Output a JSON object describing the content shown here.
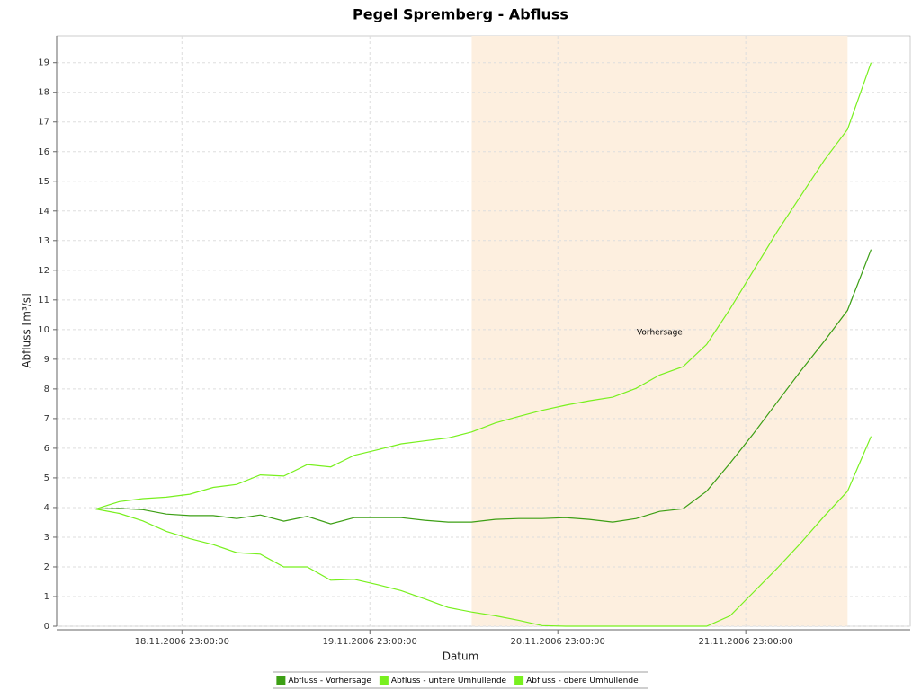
{
  "chart_data": {
    "type": "line",
    "title": "Pegel Spremberg - Abfluss",
    "x_label": "Datum",
    "y_label": "Abfluss [m³/s]",
    "x": [
      "18.11.2006 12:00:00",
      "18.11.2006 15:00:00",
      "18.11.2006 18:00:00",
      "18.11.2006 21:00:00",
      "19.11.2006 00:00:00",
      "19.11.2006 03:00:00",
      "19.11.2006 06:00:00",
      "19.11.2006 09:00:00",
      "19.11.2006 12:00:00",
      "19.11.2006 15:00:00",
      "19.11.2006 18:00:00",
      "19.11.2006 21:00:00",
      "20.11.2006 00:00:00",
      "20.11.2006 03:00:00",
      "20.11.2006 06:00:00",
      "20.11.2006 09:00:00",
      "20.11.2006 12:00:00",
      "20.11.2006 15:00:00",
      "20.11.2006 18:00:00",
      "20.11.2006 21:00:00",
      "21.11.2006 00:00:00",
      "21.11.2006 03:00:00",
      "21.11.2006 06:00:00",
      "21.11.2006 09:00:00",
      "21.11.2006 12:00:00",
      "21.11.2006 15:00:00",
      "21.11.2006 18:00:00",
      "21.11.2006 21:00:00",
      "22.11.2006 00:00:00",
      "22.11.2006 03:00:00",
      "22.11.2006 06:00:00",
      "22.11.2006 09:00:00",
      "22.11.2006 12:00:00",
      "22.11.2006 15:00:00"
    ],
    "series": [
      {
        "name": "Abfluss - Vorhersage",
        "color": "#3c9f14",
        "values": [
          3.95,
          3.97,
          3.93,
          3.78,
          3.73,
          3.73,
          3.63,
          3.75,
          3.54,
          3.7,
          3.45,
          3.66,
          3.66,
          3.66,
          3.57,
          3.51,
          3.51,
          3.6,
          3.63,
          3.63,
          3.66,
          3.6,
          3.51,
          3.63,
          3.87,
          3.96,
          4.55,
          5.5,
          6.5,
          7.55,
          8.6,
          9.6,
          10.65,
          12.7
        ]
      },
      {
        "name": "Abfluss - untere Umhüllende",
        "color": "#78f01e",
        "values": [
          3.95,
          3.8,
          3.55,
          3.2,
          2.95,
          2.75,
          2.48,
          2.43,
          2.0,
          2.0,
          1.55,
          1.58,
          1.4,
          1.2,
          0.92,
          0.63,
          0.48,
          0.35,
          0.2,
          0.02,
          0,
          0,
          0,
          0,
          0,
          0,
          0,
          0.35,
          1.15,
          1.95,
          2.8,
          3.7,
          4.55,
          6.4
        ]
      },
      {
        "name": "Abfluss - obere Umhüllende",
        "color": "#78f01e",
        "values": [
          3.95,
          4.2,
          4.3,
          4.35,
          4.45,
          4.68,
          4.78,
          5.1,
          5.06,
          5.45,
          5.37,
          5.76,
          5.95,
          6.15,
          6.25,
          6.35,
          6.55,
          6.85,
          7.07,
          7.28,
          7.45,
          7.6,
          7.72,
          8.02,
          8.47,
          8.75,
          9.5,
          10.7,
          12.0,
          13.3,
          14.5,
          15.7,
          16.75,
          19.0
        ]
      }
    ],
    "marker": {
      "start": "20.11.2006 12:00:00",
      "end": "22.11.2006 12:00:00",
      "label": "Vorhersage",
      "color": "#fdefdf"
    },
    "xlim": [
      "18.11.2006 07:00:00",
      "22.11.2006 20:00:00"
    ],
    "xticks": [
      "18.11.2006 23:00:00",
      "19.11.2006 23:00:00",
      "20.11.2006 23:00:00",
      "21.11.2006 23:00:00"
    ],
    "ylim": [
      0,
      19.9
    ],
    "yticks": [
      0,
      1,
      2,
      3,
      4,
      5,
      6,
      7,
      8,
      9,
      10,
      11,
      12,
      13,
      14,
      15,
      16,
      17,
      18,
      19
    ],
    "grid": true,
    "legend": "bottom"
  }
}
